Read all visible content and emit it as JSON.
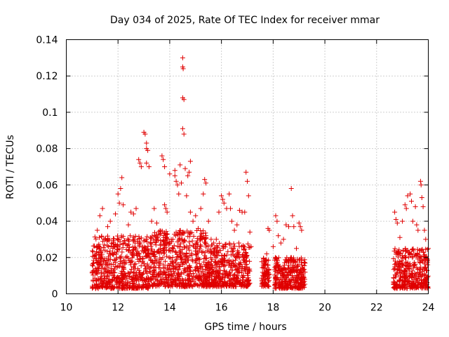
{
  "chart_data": {
    "type": "scatter",
    "title": "Day 034 of 2025, Rate Of TEC Index for receiver mmar",
    "xlabel": "GPS time / hours",
    "ylabel": "ROTI / TECUs",
    "xlim": [
      10,
      24
    ],
    "ylim": [
      0,
      0.14
    ],
    "x_ticks": [
      10,
      12,
      14,
      16,
      18,
      20,
      22,
      24
    ],
    "x_tick_labels": [
      "10",
      "12",
      "14",
      "16",
      "18",
      "20",
      "22",
      "24"
    ],
    "y_ticks": [
      0,
      0.02,
      0.04,
      0.06,
      0.08,
      0.1,
      0.12,
      0.14
    ],
    "y_tick_labels": [
      "0",
      "0.02",
      "0.04",
      "0.06",
      "0.08",
      "0.1",
      "0.12",
      "0.14"
    ],
    "grid": true,
    "marker": "+",
    "color": "#e00000",
    "series": [
      {
        "name": "ROTI",
        "points": [
          [
            11.0,
            0.012
          ],
          [
            11.1,
            0.021
          ],
          [
            11.2,
            0.035
          ],
          [
            11.3,
            0.043
          ],
          [
            11.4,
            0.047
          ],
          [
            11.5,
            0.03
          ],
          [
            11.6,
            0.037
          ],
          [
            11.7,
            0.04
          ],
          [
            11.8,
            0.025
          ],
          [
            11.9,
            0.044
          ],
          [
            12.0,
            0.055
          ],
          [
            12.05,
            0.05
          ],
          [
            12.1,
            0.058
          ],
          [
            12.15,
            0.064
          ],
          [
            12.2,
            0.049
          ],
          [
            12.4,
            0.038
          ],
          [
            12.5,
            0.045
          ],
          [
            12.6,
            0.044
          ],
          [
            12.7,
            0.047
          ],
          [
            12.8,
            0.074
          ],
          [
            12.85,
            0.072
          ],
          [
            12.9,
            0.07
          ],
          [
            13.0,
            0.089
          ],
          [
            13.05,
            0.088
          ],
          [
            13.1,
            0.083
          ],
          [
            13.1,
            0.08
          ],
          [
            13.15,
            0.079
          ],
          [
            13.1,
            0.072
          ],
          [
            13.2,
            0.07
          ],
          [
            13.3,
            0.04
          ],
          [
            13.4,
            0.047
          ],
          [
            13.5,
            0.039
          ],
          [
            13.7,
            0.076
          ],
          [
            13.75,
            0.074
          ],
          [
            13.8,
            0.07
          ],
          [
            13.8,
            0.049
          ],
          [
            13.85,
            0.047
          ],
          [
            13.9,
            0.045
          ],
          [
            14.0,
            0.066
          ],
          [
            14.2,
            0.068
          ],
          [
            14.2,
            0.065
          ],
          [
            14.25,
            0.062
          ],
          [
            14.3,
            0.06
          ],
          [
            14.35,
            0.055
          ],
          [
            14.4,
            0.071
          ],
          [
            14.45,
            0.061
          ],
          [
            14.5,
            0.13
          ],
          [
            14.5,
            0.125
          ],
          [
            14.52,
            0.124
          ],
          [
            14.5,
            0.108
          ],
          [
            14.55,
            0.107
          ],
          [
            14.5,
            0.091
          ],
          [
            14.55,
            0.088
          ],
          [
            14.6,
            0.069
          ],
          [
            14.65,
            0.054
          ],
          [
            14.7,
            0.065
          ],
          [
            14.75,
            0.067
          ],
          [
            14.8,
            0.073
          ],
          [
            14.8,
            0.045
          ],
          [
            14.9,
            0.04
          ],
          [
            15.0,
            0.043
          ],
          [
            15.1,
            0.036
          ],
          [
            15.2,
            0.047
          ],
          [
            15.3,
            0.055
          ],
          [
            15.35,
            0.063
          ],
          [
            15.4,
            0.061
          ],
          [
            15.5,
            0.04
          ],
          [
            15.6,
            0.03
          ],
          [
            15.7,
            0.028
          ],
          [
            15.8,
            0.03
          ],
          [
            15.9,
            0.045
          ],
          [
            16.0,
            0.054
          ],
          [
            16.05,
            0.052
          ],
          [
            16.1,
            0.05
          ],
          [
            16.2,
            0.047
          ],
          [
            16.3,
            0.055
          ],
          [
            16.35,
            0.047
          ],
          [
            16.4,
            0.04
          ],
          [
            16.5,
            0.035
          ],
          [
            16.6,
            0.038
          ],
          [
            16.7,
            0.046
          ],
          [
            16.8,
            0.045
          ],
          [
            16.9,
            0.045
          ],
          [
            16.95,
            0.067
          ],
          [
            17.0,
            0.062
          ],
          [
            17.05,
            0.054
          ],
          [
            17.1,
            0.034
          ],
          [
            17.15,
            0.026
          ],
          [
            17.6,
            0.01
          ],
          [
            17.7,
            0.018
          ],
          [
            17.75,
            0.022
          ],
          [
            17.8,
            0.036
          ],
          [
            17.85,
            0.035
          ],
          [
            18.0,
            0.026
          ],
          [
            18.1,
            0.043
          ],
          [
            18.15,
            0.04
          ],
          [
            18.2,
            0.032
          ],
          [
            18.3,
            0.028
          ],
          [
            18.4,
            0.03
          ],
          [
            18.5,
            0.038
          ],
          [
            18.6,
            0.037
          ],
          [
            18.7,
            0.058
          ],
          [
            18.75,
            0.043
          ],
          [
            18.8,
            0.037
          ],
          [
            18.9,
            0.025
          ],
          [
            19.0,
            0.039
          ],
          [
            19.05,
            0.037
          ],
          [
            19.1,
            0.035
          ],
          [
            19.2,
            0.017
          ],
          [
            22.7,
            0.045
          ],
          [
            22.75,
            0.041
          ],
          [
            22.8,
            0.039
          ],
          [
            22.9,
            0.031
          ],
          [
            23.0,
            0.04
          ],
          [
            23.1,
            0.049
          ],
          [
            23.15,
            0.047
          ],
          [
            23.2,
            0.054
          ],
          [
            23.3,
            0.055
          ],
          [
            23.35,
            0.051
          ],
          [
            23.4,
            0.04
          ],
          [
            23.5,
            0.048
          ],
          [
            23.55,
            0.038
          ],
          [
            23.6,
            0.035
          ],
          [
            23.7,
            0.062
          ],
          [
            23.72,
            0.06
          ],
          [
            23.75,
            0.053
          ],
          [
            23.8,
            0.048
          ],
          [
            23.85,
            0.035
          ],
          [
            23.9,
            0.03
          ],
          [
            24.0,
            0.025
          ]
        ],
        "dense_bands": [
          {
            "x": [
              11.0,
              13.2
            ],
            "y": [
              0.003,
              0.032
            ]
          },
          {
            "x": [
              13.2,
              15.5
            ],
            "y": [
              0.004,
              0.035
            ]
          },
          {
            "x": [
              15.5,
              17.1
            ],
            "y": [
              0.004,
              0.028
            ]
          },
          {
            "x": [
              17.55,
              17.85
            ],
            "y": [
              0.004,
              0.02
            ]
          },
          {
            "x": [
              18.05,
              19.25
            ],
            "y": [
              0.003,
              0.02
            ]
          },
          {
            "x": [
              22.65,
              24.0
            ],
            "y": [
              0.003,
              0.025
            ]
          }
        ]
      }
    ]
  }
}
